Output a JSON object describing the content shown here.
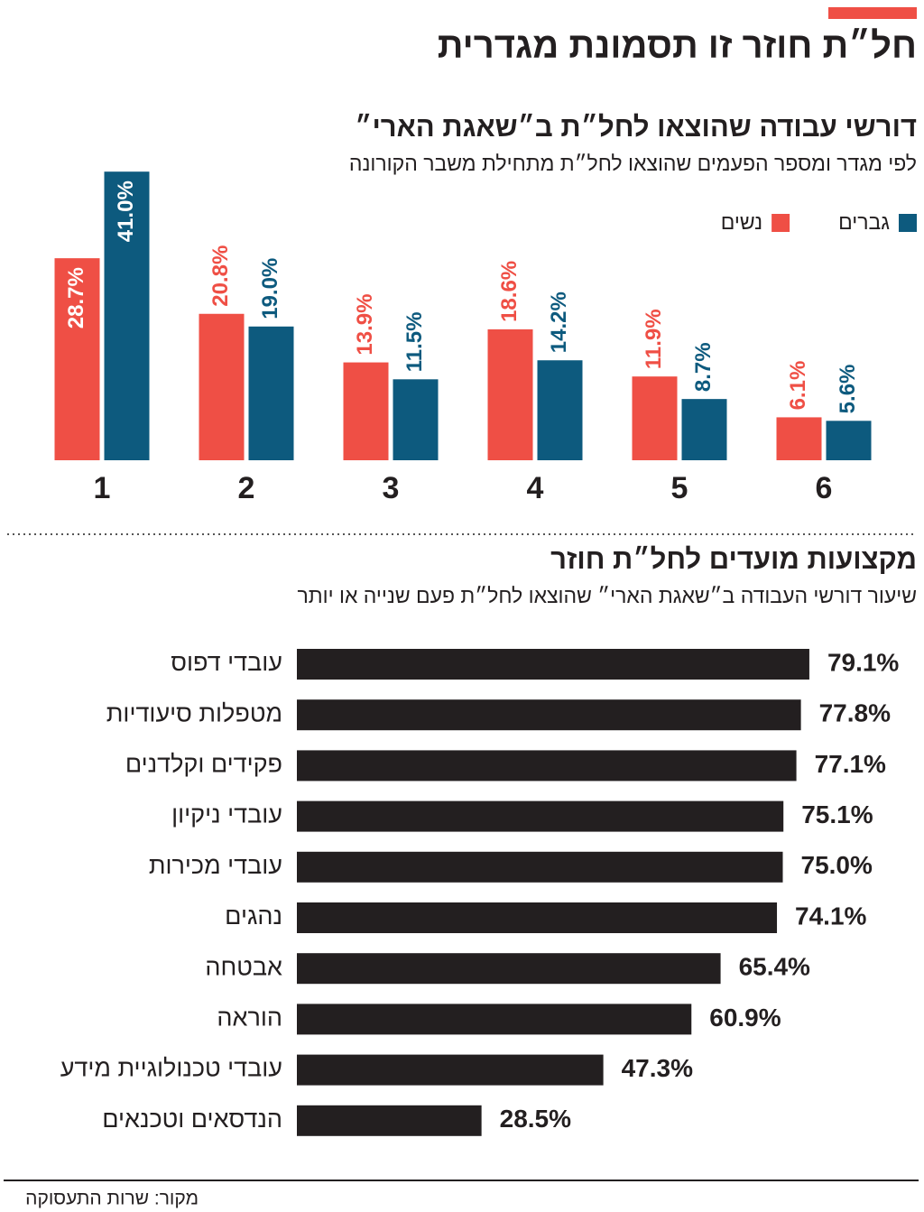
{
  "title": "חל״ת חוזר זו תסמונת מגדרית",
  "source": "מקור: שרות התעסוקה",
  "chart_data": [
    {
      "type": "bar",
      "title": "דורשי עבודה שהוצאו לחל״ת ב״שאגת הארי״",
      "subtitle": "לפי מגדר ומספר הפעמים שהוצאו לחל״ת מתחילת משבר הקורונה",
      "categories": [
        "1",
        "2",
        "3",
        "4",
        "5",
        "6"
      ],
      "legend": "top-right",
      "series": [
        {
          "name": "נשים",
          "color": "#ef4f45",
          "values": [
            28.7,
            20.8,
            13.9,
            18.6,
            11.9,
            6.1
          ],
          "value_labels": [
            "28.7%",
            "20.8%",
            "13.9%",
            "18.6%",
            "11.9%",
            "6.1%"
          ]
        },
        {
          "name": "גברים",
          "color": "#0d5a7e",
          "values": [
            41.0,
            19.0,
            11.5,
            14.2,
            8.7,
            5.6
          ],
          "value_labels": [
            "41.0%",
            "19.0%",
            "11.5%",
            "14.2%",
            "8.7%",
            "5.6%"
          ]
        }
      ]
    },
    {
      "type": "hbar",
      "title": "מקצועות מועדים לחל״ת חוזר",
      "subtitle": "שיעור דורשי העבודה ב״שאגת הארי״ שהוצאו לחל״ת פעם שנייה או יותר",
      "color": "#231f20",
      "categories": [
        "עובדי דפוס",
        "מטפלות סיעודיות",
        "פקידים וקלדנים",
        "עובדי ניקיון",
        "עובדי מכירות",
        "נהגים",
        "אבטחה",
        "הוראה",
        "עובדי טכנולוגיית מידע",
        "הנדסאים וטכנאים"
      ],
      "values": [
        79.1,
        77.8,
        77.1,
        75.1,
        75.0,
        74.1,
        65.4,
        60.9,
        47.3,
        28.5
      ],
      "value_labels": [
        "79.1%",
        "77.8%",
        "77.1%",
        "75.1%",
        "75.0%",
        "74.1%",
        "65.4%",
        "60.9%",
        "47.3%",
        "28.5%"
      ]
    }
  ]
}
